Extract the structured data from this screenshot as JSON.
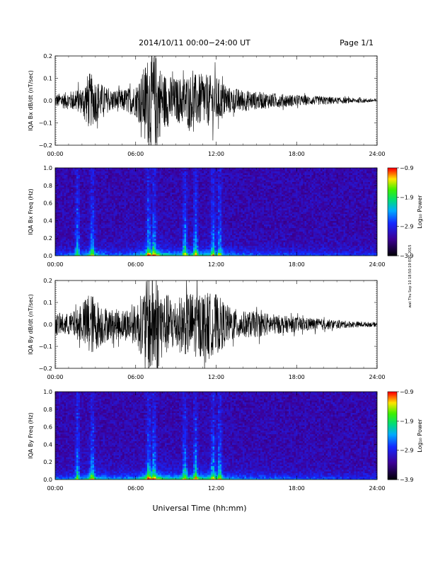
{
  "header": {
    "title": "2014/10/11   00:00−24:00 UT",
    "page": "Page 1/1"
  },
  "side_stamp": "wat Thu Sep 10 18:50:19 EDT 2015",
  "xlabel": "Universal Time (hh:mm)",
  "chart_data": [
    {
      "type": "line",
      "title": "",
      "ylabel": "IQA Bx dB/dt (nT/sec)",
      "xlim": [
        "00:00",
        "24:00"
      ],
      "ylim": [
        -0.2,
        0.2
      ],
      "x_ticks": [
        "00:00",
        "06:00",
        "12:00",
        "18:00",
        "24:00"
      ],
      "y_ticks": [
        "−0.2",
        "−0.1",
        "0.0",
        "0.1",
        "0.2"
      ],
      "envelope": {
        "x_hours": [
          0,
          1,
          2,
          2.5,
          3,
          4,
          5,
          6,
          6.5,
          7,
          7.5,
          8,
          9,
          10,
          11,
          12,
          13,
          14,
          15,
          16,
          17,
          18,
          19,
          20,
          21,
          22,
          23,
          24
        ],
        "amplitude": [
          0.03,
          0.04,
          0.06,
          0.13,
          0.1,
          0.05,
          0.05,
          0.07,
          0.13,
          0.22,
          0.22,
          0.13,
          0.1,
          0.12,
          0.12,
          0.11,
          0.06,
          0.05,
          0.04,
          0.035,
          0.03,
          0.025,
          0.02,
          0.02,
          0.015,
          0.012,
          0.01,
          0.008
        ]
      }
    },
    {
      "type": "heatmap",
      "title": "",
      "ylabel": "IQA Bx Freq (Hz)",
      "xlim": [
        "00:00",
        "24:00"
      ],
      "ylim": [
        0.0,
        1.0
      ],
      "x_ticks": [
        "00:00",
        "06:00",
        "12:00",
        "18:00",
        "24:00"
      ],
      "y_ticks": [
        "0.0",
        "0.2",
        "0.4",
        "0.6",
        "0.8",
        "1.0"
      ],
      "colorbar": {
        "label": "Log₁₀ Power",
        "range": [
          -3.9,
          -0.9
        ],
        "ticks": [
          "−0.9",
          "−1.9",
          "−2.9",
          "−3.9"
        ]
      },
      "bursts_hours": [
        1.6,
        2.7,
        6.9,
        7.3,
        9.6,
        10.4,
        11.7,
        12.2
      ],
      "low_freq_band_hz": 0.05
    },
    {
      "type": "line",
      "title": "",
      "ylabel": "IQA By dB/dt (nT/sec)",
      "xlim": [
        "00:00",
        "24:00"
      ],
      "ylim": [
        -0.2,
        0.2
      ],
      "x_ticks": [
        "00:00",
        "06:00",
        "12:00",
        "18:00",
        "24:00"
      ],
      "y_ticks": [
        "−0.2",
        "−0.1",
        "0.0",
        "0.1",
        "0.2"
      ],
      "envelope": {
        "x_hours": [
          0,
          1,
          2,
          2.5,
          3,
          4,
          5,
          6,
          6.5,
          7,
          7.5,
          8,
          9,
          10,
          11,
          12,
          13,
          14,
          15,
          16,
          17,
          18,
          19,
          20,
          21,
          22,
          23,
          24
        ],
        "amplitude": [
          0.05,
          0.05,
          0.08,
          0.16,
          0.12,
          0.07,
          0.07,
          0.09,
          0.15,
          0.24,
          0.24,
          0.15,
          0.12,
          0.15,
          0.15,
          0.14,
          0.08,
          0.06,
          0.06,
          0.05,
          0.04,
          0.035,
          0.03,
          0.025,
          0.02,
          0.015,
          0.012,
          0.01
        ]
      }
    },
    {
      "type": "heatmap",
      "title": "",
      "ylabel": "IQA By Freq (Hz)",
      "xlim": [
        "00:00",
        "24:00"
      ],
      "ylim": [
        0.0,
        1.0
      ],
      "x_ticks": [
        "00:00",
        "06:00",
        "12:00",
        "18:00",
        "24:00"
      ],
      "y_ticks": [
        "0.0",
        "0.2",
        "0.4",
        "0.6",
        "0.8",
        "1.0"
      ],
      "colorbar": {
        "label": "Log₁₀ Power",
        "range": [
          -3.9,
          -0.9
        ],
        "ticks": [
          "−0.9",
          "−1.9",
          "−2.9",
          "−3.9"
        ]
      },
      "bursts_hours": [
        1.6,
        2.7,
        6.9,
        7.3,
        9.6,
        10.4,
        11.7,
        12.2
      ],
      "low_freq_band_hz": 0.05
    }
  ]
}
